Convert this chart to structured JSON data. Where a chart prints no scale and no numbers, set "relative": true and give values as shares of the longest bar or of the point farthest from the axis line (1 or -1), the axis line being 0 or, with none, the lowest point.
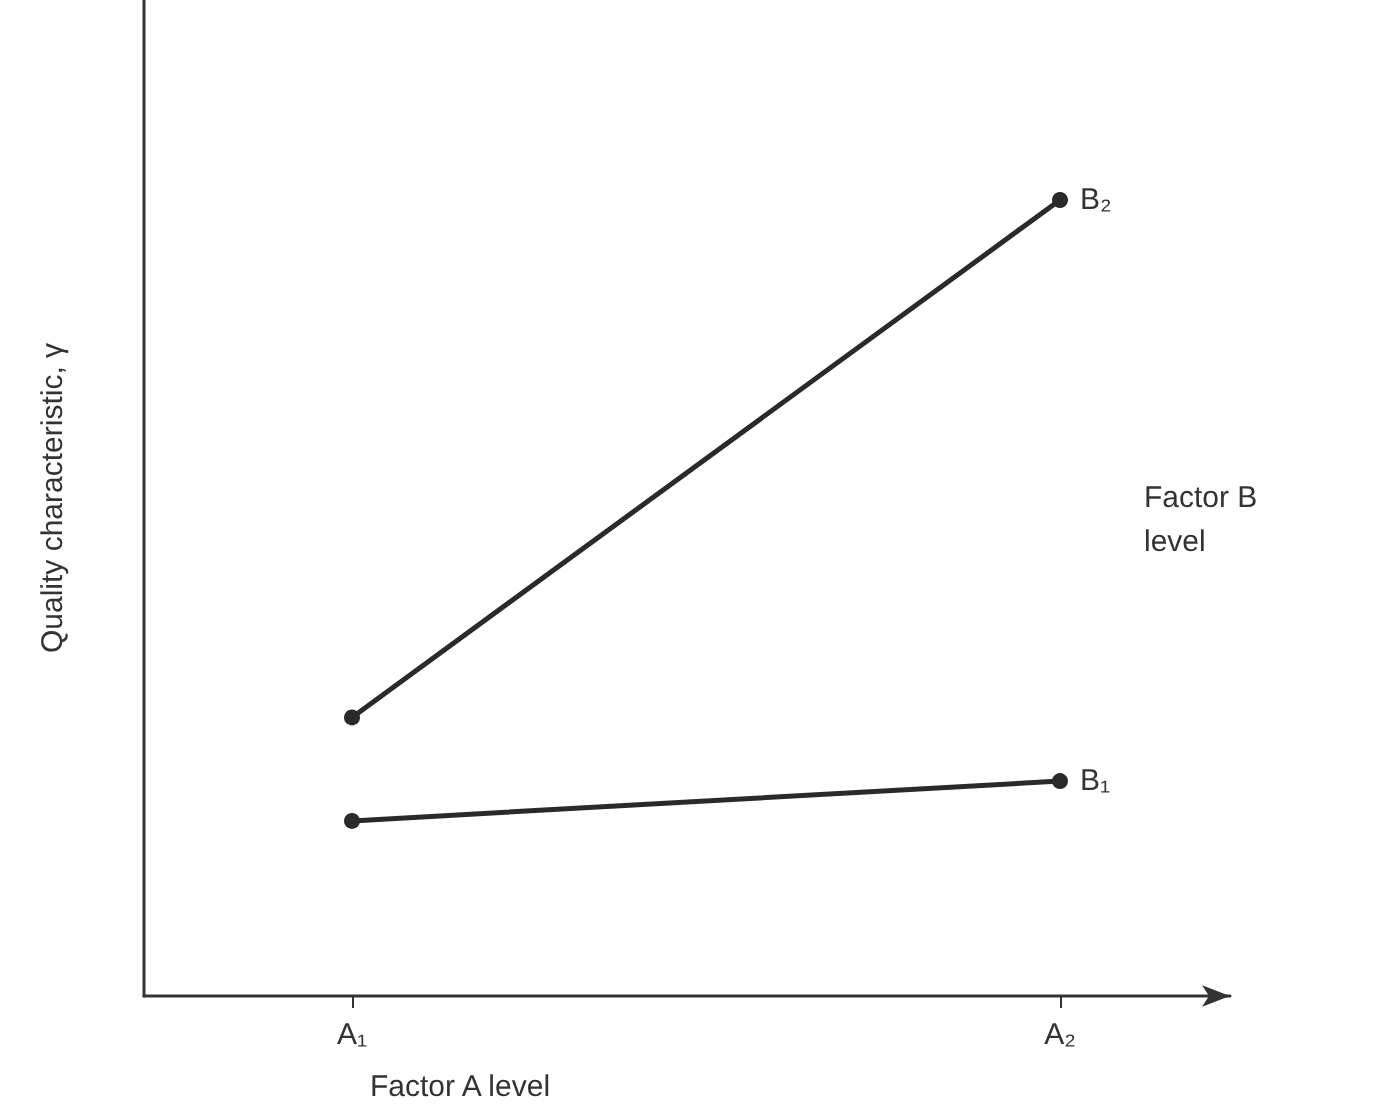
{
  "chart_data": {
    "type": "line",
    "relative": true,
    "categories": [
      "A₁",
      "A₂"
    ],
    "series": [
      {
        "name": "B₁",
        "color": "#2a2a2a",
        "values": [
          0.22,
          0.27
        ]
      },
      {
        "name": "B₂",
        "color": "#2a2a2a",
        "values": [
          0.35,
          1
        ]
      }
    ],
    "xlabel": "Factor A level",
    "ylabel": "Quality characteristic, γ",
    "annotations": [
      "Factor B level"
    ],
    "marker": "circle",
    "line_style": "solid",
    "grid": false,
    "legend": false
  }
}
